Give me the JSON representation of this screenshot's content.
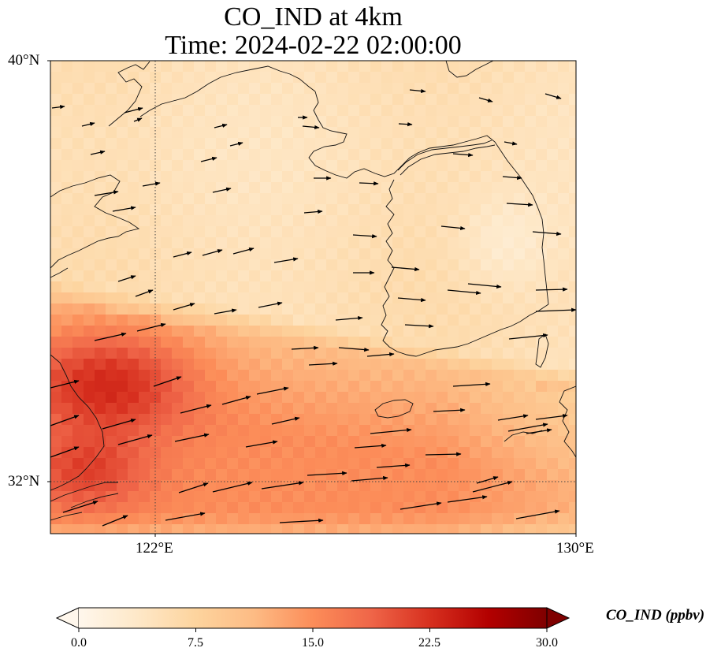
{
  "title": {
    "line1": "CO_IND at 4km",
    "line2": "Time: 2024-02-22 02:00:00"
  },
  "map": {
    "lat_range": [
      31.0,
      40.0
    ],
    "lon_range": [
      120.0,
      130.0
    ],
    "lat_ticks": [
      {
        "value": 40,
        "label": "40°N"
      },
      {
        "value": 32,
        "label": "32°N"
      }
    ],
    "lon_ticks": [
      {
        "value": 122,
        "label": "122°E"
      },
      {
        "value": 130,
        "label": "130°E"
      }
    ],
    "gridlines": "dotted",
    "coastline_color": "#000000",
    "wind_arrows": "black quiver, mostly east to slightly northeast"
  },
  "colorbar": {
    "label": "CO_IND (ppbv)",
    "colormap": "OrRd",
    "range": [
      0.0,
      30.0
    ],
    "ticks": [
      "0.0",
      "7.5",
      "15.0",
      "22.5",
      "30.0"
    ],
    "extend": "both",
    "colors": [
      "#fff7ec",
      "#fee8c8",
      "#fdd49e",
      "#fdbb84",
      "#fc8d59",
      "#ef6548",
      "#d7301f",
      "#b30000",
      "#7f0000"
    ]
  }
}
